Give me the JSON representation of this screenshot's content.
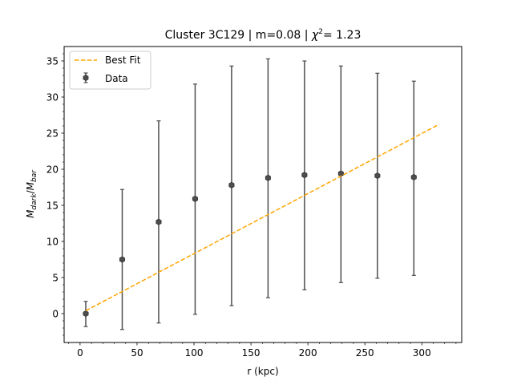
{
  "chart_data": {
    "type": "scatter",
    "title": {
      "prefix": "Cluster 3C129 | m=0.08 | ",
      "chi": "χ",
      "sup": "2",
      "suffix": "= 1.23"
    },
    "xlabel": "r (kpc)",
    "ylabel": {
      "base1": "M",
      "sub1": "dark",
      "sep": "/",
      "base2": "M",
      "sub2": "bar"
    },
    "xlim": [
      -14,
      335
    ],
    "ylim": [
      -4,
      37
    ],
    "x_ticks": [
      0,
      50,
      100,
      150,
      200,
      250,
      300
    ],
    "x_tick_labels": [
      "0",
      "50",
      "100",
      "150",
      "200",
      "250",
      "300"
    ],
    "y_ticks": [
      0,
      5,
      10,
      15,
      20,
      25,
      30,
      35
    ],
    "y_tick_labels": [
      "0",
      "5",
      "10",
      "15",
      "20",
      "25",
      "30",
      "35"
    ],
    "grid": false,
    "legend_position": "top-left",
    "series": [
      {
        "name": "Data",
        "kind": "errorbar",
        "color": "#4d4d4d",
        "x": [
          5,
          37,
          69,
          101,
          133,
          165,
          197,
          229,
          261,
          293
        ],
        "y": [
          0.0,
          7.5,
          12.7,
          15.9,
          17.8,
          18.8,
          19.2,
          19.4,
          19.1,
          18.9
        ],
        "y_lower": [
          -1.8,
          -2.2,
          -1.3,
          -0.1,
          1.1,
          2.2,
          3.3,
          4.3,
          4.9,
          5.3
        ],
        "y_upper": [
          1.7,
          17.2,
          26.7,
          31.8,
          34.3,
          35.3,
          35.0,
          34.3,
          33.3,
          32.2
        ]
      },
      {
        "name": "Best Fit",
        "kind": "line",
        "style": "dashed",
        "color": "#ffa500",
        "x": [
          5,
          315
        ],
        "y": [
          0.4,
          26.2
        ]
      }
    ]
  }
}
